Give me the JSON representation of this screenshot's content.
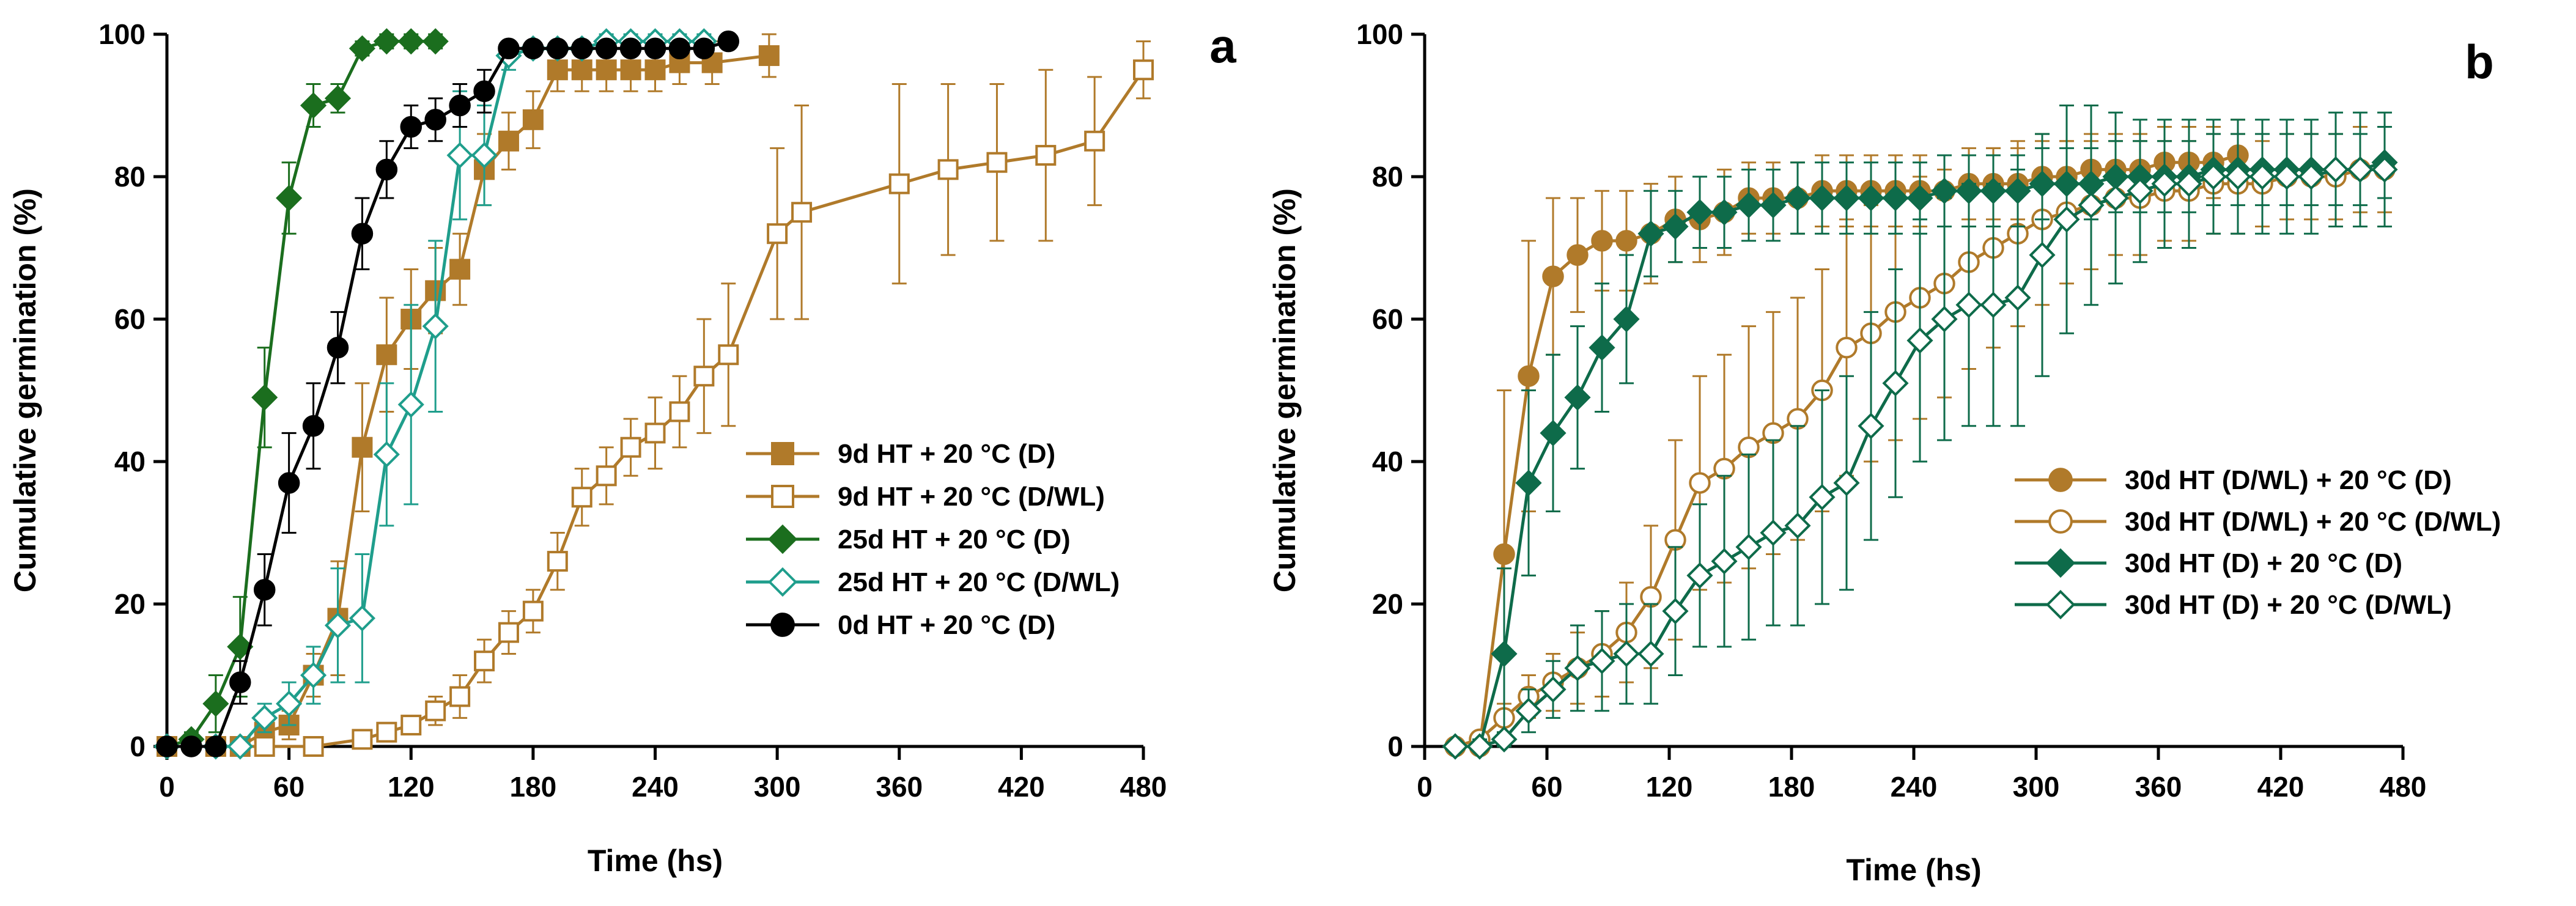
{
  "chart_data": [
    {
      "type": "line",
      "panel_label": "a",
      "xlabel": "Time (hs)",
      "ylabel": "Cumulative germination (%)",
      "xlim": [
        0,
        480
      ],
      "ylim": [
        0,
        100
      ],
      "xticks": [
        0,
        60,
        120,
        180,
        240,
        300,
        360,
        420,
        480
      ],
      "yticks": [
        0,
        20,
        40,
        60,
        80,
        100
      ],
      "grid": false,
      "legend_position": "center-right",
      "series": [
        {
          "name": "9d HT + 20 °C (D)",
          "color": "#B07A2A",
          "marker": "square",
          "filled": true,
          "x": [
            0,
            24,
            36,
            48,
            60,
            72,
            84,
            96,
            108,
            120,
            132,
            144,
            156,
            168,
            180,
            192,
            204,
            216,
            228,
            240,
            252,
            268,
            296
          ],
          "y": [
            0,
            0,
            0,
            2,
            3,
            10,
            18,
            42,
            55,
            60,
            64,
            67,
            81,
            85,
            88,
            95,
            95,
            95,
            95,
            95,
            96,
            96,
            97
          ],
          "err": [
            0,
            0,
            0,
            1,
            2,
            3,
            8,
            9,
            8,
            7,
            6,
            5,
            5,
            4,
            4,
            3,
            3,
            3,
            3,
            3,
            3,
            3,
            3
          ]
        },
        {
          "name": "9d HT  + 20 °C (D/WL)",
          "color": "#B07A2A",
          "marker": "square",
          "filled": false,
          "x": [
            0,
            24,
            48,
            72,
            96,
            108,
            120,
            132,
            144,
            156,
            168,
            180,
            192,
            204,
            216,
            228,
            240,
            252,
            264,
            276,
            300,
            312,
            360,
            384,
            408,
            432,
            456,
            480
          ],
          "y": [
            0,
            0,
            0,
            0,
            1,
            2,
            3,
            5,
            7,
            12,
            16,
            19,
            26,
            35,
            38,
            42,
            44,
            47,
            52,
            55,
            72,
            75,
            79,
            81,
            82,
            83,
            85,
            95
          ],
          "err": [
            0,
            0,
            0,
            0,
            1,
            1,
            1,
            2,
            3,
            3,
            3,
            3,
            4,
            4,
            4,
            4,
            5,
            5,
            8,
            10,
            12,
            15,
            14,
            12,
            11,
            12,
            9,
            4
          ]
        },
        {
          "name": "25d HT + 20 °C (D)",
          "color": "#1B6E1E",
          "marker": "diamond",
          "filled": true,
          "x": [
            0,
            12,
            24,
            36,
            48,
            60,
            72,
            84,
            96,
            108,
            120,
            132
          ],
          "y": [
            0,
            1,
            6,
            14,
            49,
            77,
            90,
            91,
            98,
            99,
            99,
            99
          ],
          "err": [
            0,
            1,
            4,
            7,
            7,
            5,
            3,
            2,
            1,
            1,
            1,
            1
          ]
        },
        {
          "name": "25d HT  + 20 °C (D/WL)",
          "color": "#1F9E8C",
          "marker": "diamond",
          "filled": false,
          "x": [
            0,
            24,
            36,
            48,
            60,
            72,
            84,
            96,
            108,
            120,
            132,
            144,
            156,
            168,
            180,
            192,
            204,
            216,
            228,
            240,
            252,
            264
          ],
          "y": [
            0,
            0,
            0,
            4,
            6,
            10,
            17,
            18,
            41,
            48,
            59,
            83,
            83,
            97,
            98,
            98,
            98,
            99,
            99,
            99,
            99,
            99
          ],
          "err": [
            0,
            0,
            0,
            2,
            3,
            4,
            8,
            9,
            10,
            14,
            12,
            9,
            7,
            2,
            1,
            1,
            1,
            1,
            1,
            1,
            1,
            1
          ]
        },
        {
          "name": "0d HT + 20 °C (D)",
          "color": "#000000",
          "marker": "circle",
          "filled": true,
          "x": [
            0,
            12,
            24,
            36,
            48,
            60,
            72,
            84,
            96,
            108,
            120,
            132,
            144,
            156,
            168,
            180,
            192,
            204,
            216,
            228,
            240,
            252,
            264,
            276
          ],
          "y": [
            0,
            0,
            0,
            9,
            22,
            37,
            45,
            56,
            72,
            81,
            87,
            88,
            90,
            92,
            98,
            98,
            98,
            98,
            98,
            98,
            98,
            98,
            98,
            99
          ],
          "err": [
            0,
            0,
            0,
            3,
            5,
            7,
            6,
            5,
            5,
            4,
            3,
            3,
            3,
            3,
            1,
            1,
            1,
            1,
            1,
            1,
            1,
            1,
            1,
            1
          ]
        }
      ]
    },
    {
      "type": "line",
      "panel_label": "b",
      "xlabel": "Time (hs)",
      "ylabel": "Cumulative germination (%)",
      "xlim": [
        0,
        480
      ],
      "ylim": [
        0,
        100
      ],
      "xticks": [
        0,
        60,
        120,
        180,
        240,
        300,
        360,
        420,
        480
      ],
      "yticks": [
        0,
        20,
        40,
        60,
        80,
        100
      ],
      "grid": false,
      "legend_position": "center-right",
      "series": [
        {
          "name": "30d HT (D/WL) + 20 °C (D)",
          "color": "#B07A2A",
          "marker": "circle",
          "filled": true,
          "x": [
            15,
            27,
            39,
            51,
            63,
            75,
            87,
            99,
            111,
            123,
            135,
            147,
            159,
            171,
            183,
            195,
            207,
            219,
            231,
            243,
            255,
            267,
            279,
            291,
            303,
            315,
            327,
            339,
            351,
            363,
            375,
            387,
            399
          ],
          "y": [
            0,
            0,
            27,
            52,
            66,
            69,
            71,
            71,
            72,
            74,
            74,
            75,
            77,
            77,
            77,
            78,
            78,
            78,
            78,
            78,
            78,
            79,
            79,
            79,
            80,
            80,
            81,
            81,
            81,
            82,
            82,
            82,
            83
          ],
          "err": [
            0,
            1,
            23,
            19,
            11,
            8,
            7,
            7,
            7,
            6,
            6,
            6,
            5,
            5,
            5,
            5,
            5,
            5,
            5,
            5,
            5,
            5,
            5,
            5,
            5,
            5,
            5,
            5,
            5,
            5,
            5,
            5,
            5
          ]
        },
        {
          "name": "30d HT (D/WL) + 20 °C (D/WL)",
          "color": "#B07A2A",
          "marker": "circle",
          "filled": false,
          "x": [
            15,
            27,
            39,
            51,
            63,
            75,
            87,
            99,
            111,
            123,
            135,
            147,
            159,
            171,
            183,
            195,
            207,
            219,
            231,
            243,
            255,
            267,
            279,
            291,
            303,
            315,
            327,
            339,
            351,
            363,
            375,
            387,
            399,
            411,
            423,
            435,
            447,
            459,
            471
          ],
          "y": [
            0,
            1,
            4,
            7,
            9,
            11,
            13,
            16,
            21,
            29,
            37,
            39,
            42,
            44,
            46,
            50,
            56,
            58,
            61,
            63,
            65,
            68,
            70,
            72,
            74,
            75,
            76,
            77,
            77,
            78,
            78,
            79,
            79,
            79,
            80,
            80,
            80,
            81,
            81
          ],
          "err": [
            0,
            1,
            2,
            3,
            4,
            5,
            6,
            7,
            10,
            14,
            15,
            16,
            17,
            17,
            17,
            17,
            18,
            18,
            18,
            17,
            16,
            15,
            14,
            13,
            12,
            10,
            9,
            8,
            8,
            7,
            7,
            7,
            7,
            6,
            6,
            6,
            6,
            6,
            6
          ]
        },
        {
          "name": "30d HT (D) + 20 °C (D)",
          "color": "#0E6B4A",
          "marker": "diamond",
          "filled": true,
          "x": [
            15,
            27,
            39,
            51,
            63,
            75,
            87,
            99,
            111,
            123,
            135,
            147,
            159,
            171,
            183,
            195,
            207,
            219,
            231,
            243,
            255,
            267,
            279,
            291,
            303,
            315,
            327,
            339,
            351,
            363,
            375,
            387,
            399,
            411,
            423,
            435,
            447,
            459,
            471
          ],
          "y": [
            0,
            0,
            13,
            37,
            44,
            49,
            56,
            60,
            72,
            73,
            75,
            75,
            76,
            76,
            77,
            77,
            77,
            77,
            77,
            77,
            78,
            78,
            78,
            78,
            79,
            79,
            79,
            80,
            80,
            80,
            80,
            81,
            81,
            81,
            81,
            81,
            81,
            81,
            82
          ],
          "err": [
            0,
            1,
            12,
            13,
            11,
            10,
            9,
            9,
            6,
            5,
            5,
            5,
            5,
            5,
            5,
            5,
            5,
            5,
            5,
            5,
            5,
            5,
            5,
            5,
            5,
            5,
            5,
            5,
            5,
            5,
            5,
            5,
            5,
            5,
            5,
            5,
            5,
            5,
            5
          ]
        },
        {
          "name": "30d HT (D) + 20 °C (D/WL)",
          "color": "#0E6B4A",
          "marker": "diamond",
          "filled": false,
          "x": [
            15,
            27,
            39,
            51,
            63,
            75,
            87,
            99,
            111,
            123,
            135,
            147,
            159,
            171,
            183,
            195,
            207,
            219,
            231,
            243,
            255,
            267,
            279,
            291,
            303,
            315,
            327,
            339,
            351,
            363,
            375,
            387,
            399,
            411,
            423,
            435,
            447,
            459,
            471
          ],
          "y": [
            0,
            0,
            1,
            5,
            8,
            11,
            12,
            13,
            13,
            19,
            24,
            26,
            28,
            30,
            31,
            35,
            37,
            45,
            51,
            57,
            60,
            62,
            62,
            63,
            69,
            74,
            76,
            77,
            78,
            79,
            79,
            80,
            80,
            80,
            80,
            80,
            81,
            81,
            81
          ],
          "err": [
            0,
            0,
            1,
            3,
            4,
            6,
            7,
            7,
            7,
            9,
            10,
            12,
            13,
            13,
            14,
            15,
            15,
            16,
            16,
            17,
            17,
            17,
            17,
            18,
            17,
            16,
            14,
            12,
            10,
            9,
            9,
            8,
            8,
            8,
            8,
            8,
            8,
            8,
            8
          ]
        }
      ]
    }
  ]
}
